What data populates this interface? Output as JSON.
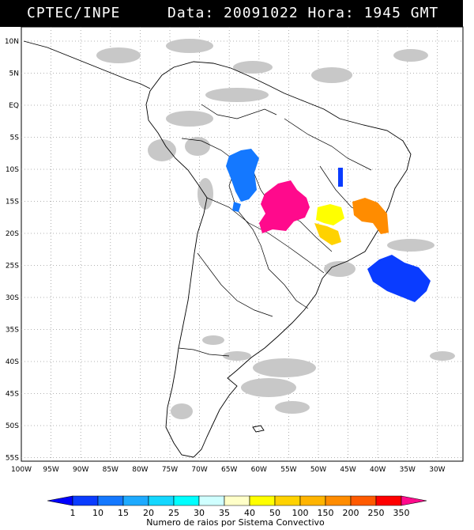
{
  "header": {
    "source": "CPTEC/INPE",
    "datetime": "Data: 20091022 Hora: 1945 GMT"
  },
  "map": {
    "lat_labels": [
      "10N",
      "5N",
      "EQ",
      "5S",
      "10S",
      "15S",
      "20S",
      "25S",
      "30S",
      "35S",
      "40S",
      "45S",
      "50S",
      "55S"
    ],
    "lon_labels": [
      "100W",
      "95W",
      "90W",
      "85W",
      "80W",
      "75W",
      "70W",
      "65W",
      "60W",
      "55W",
      "50W",
      "45W",
      "40W",
      "35W",
      "30W"
    ]
  },
  "colorbar": {
    "title": "Numero de raios por Sistema Convectivo",
    "labels": [
      "1",
      "10",
      "15",
      "20",
      "25",
      "30",
      "35",
      "40",
      "50",
      "100",
      "150",
      "200",
      "250",
      "350"
    ],
    "colors": [
      "#0000ff",
      "#0a3cff",
      "#1478ff",
      "#1eaaff",
      "#14d7ff",
      "#00ffff",
      "#cfffff",
      "#ffffc8",
      "#ffff00",
      "#ffd200",
      "#ffb400",
      "#ff8c00",
      "#ff5a00",
      "#ff0000",
      "#ff0a8c"
    ]
  }
}
